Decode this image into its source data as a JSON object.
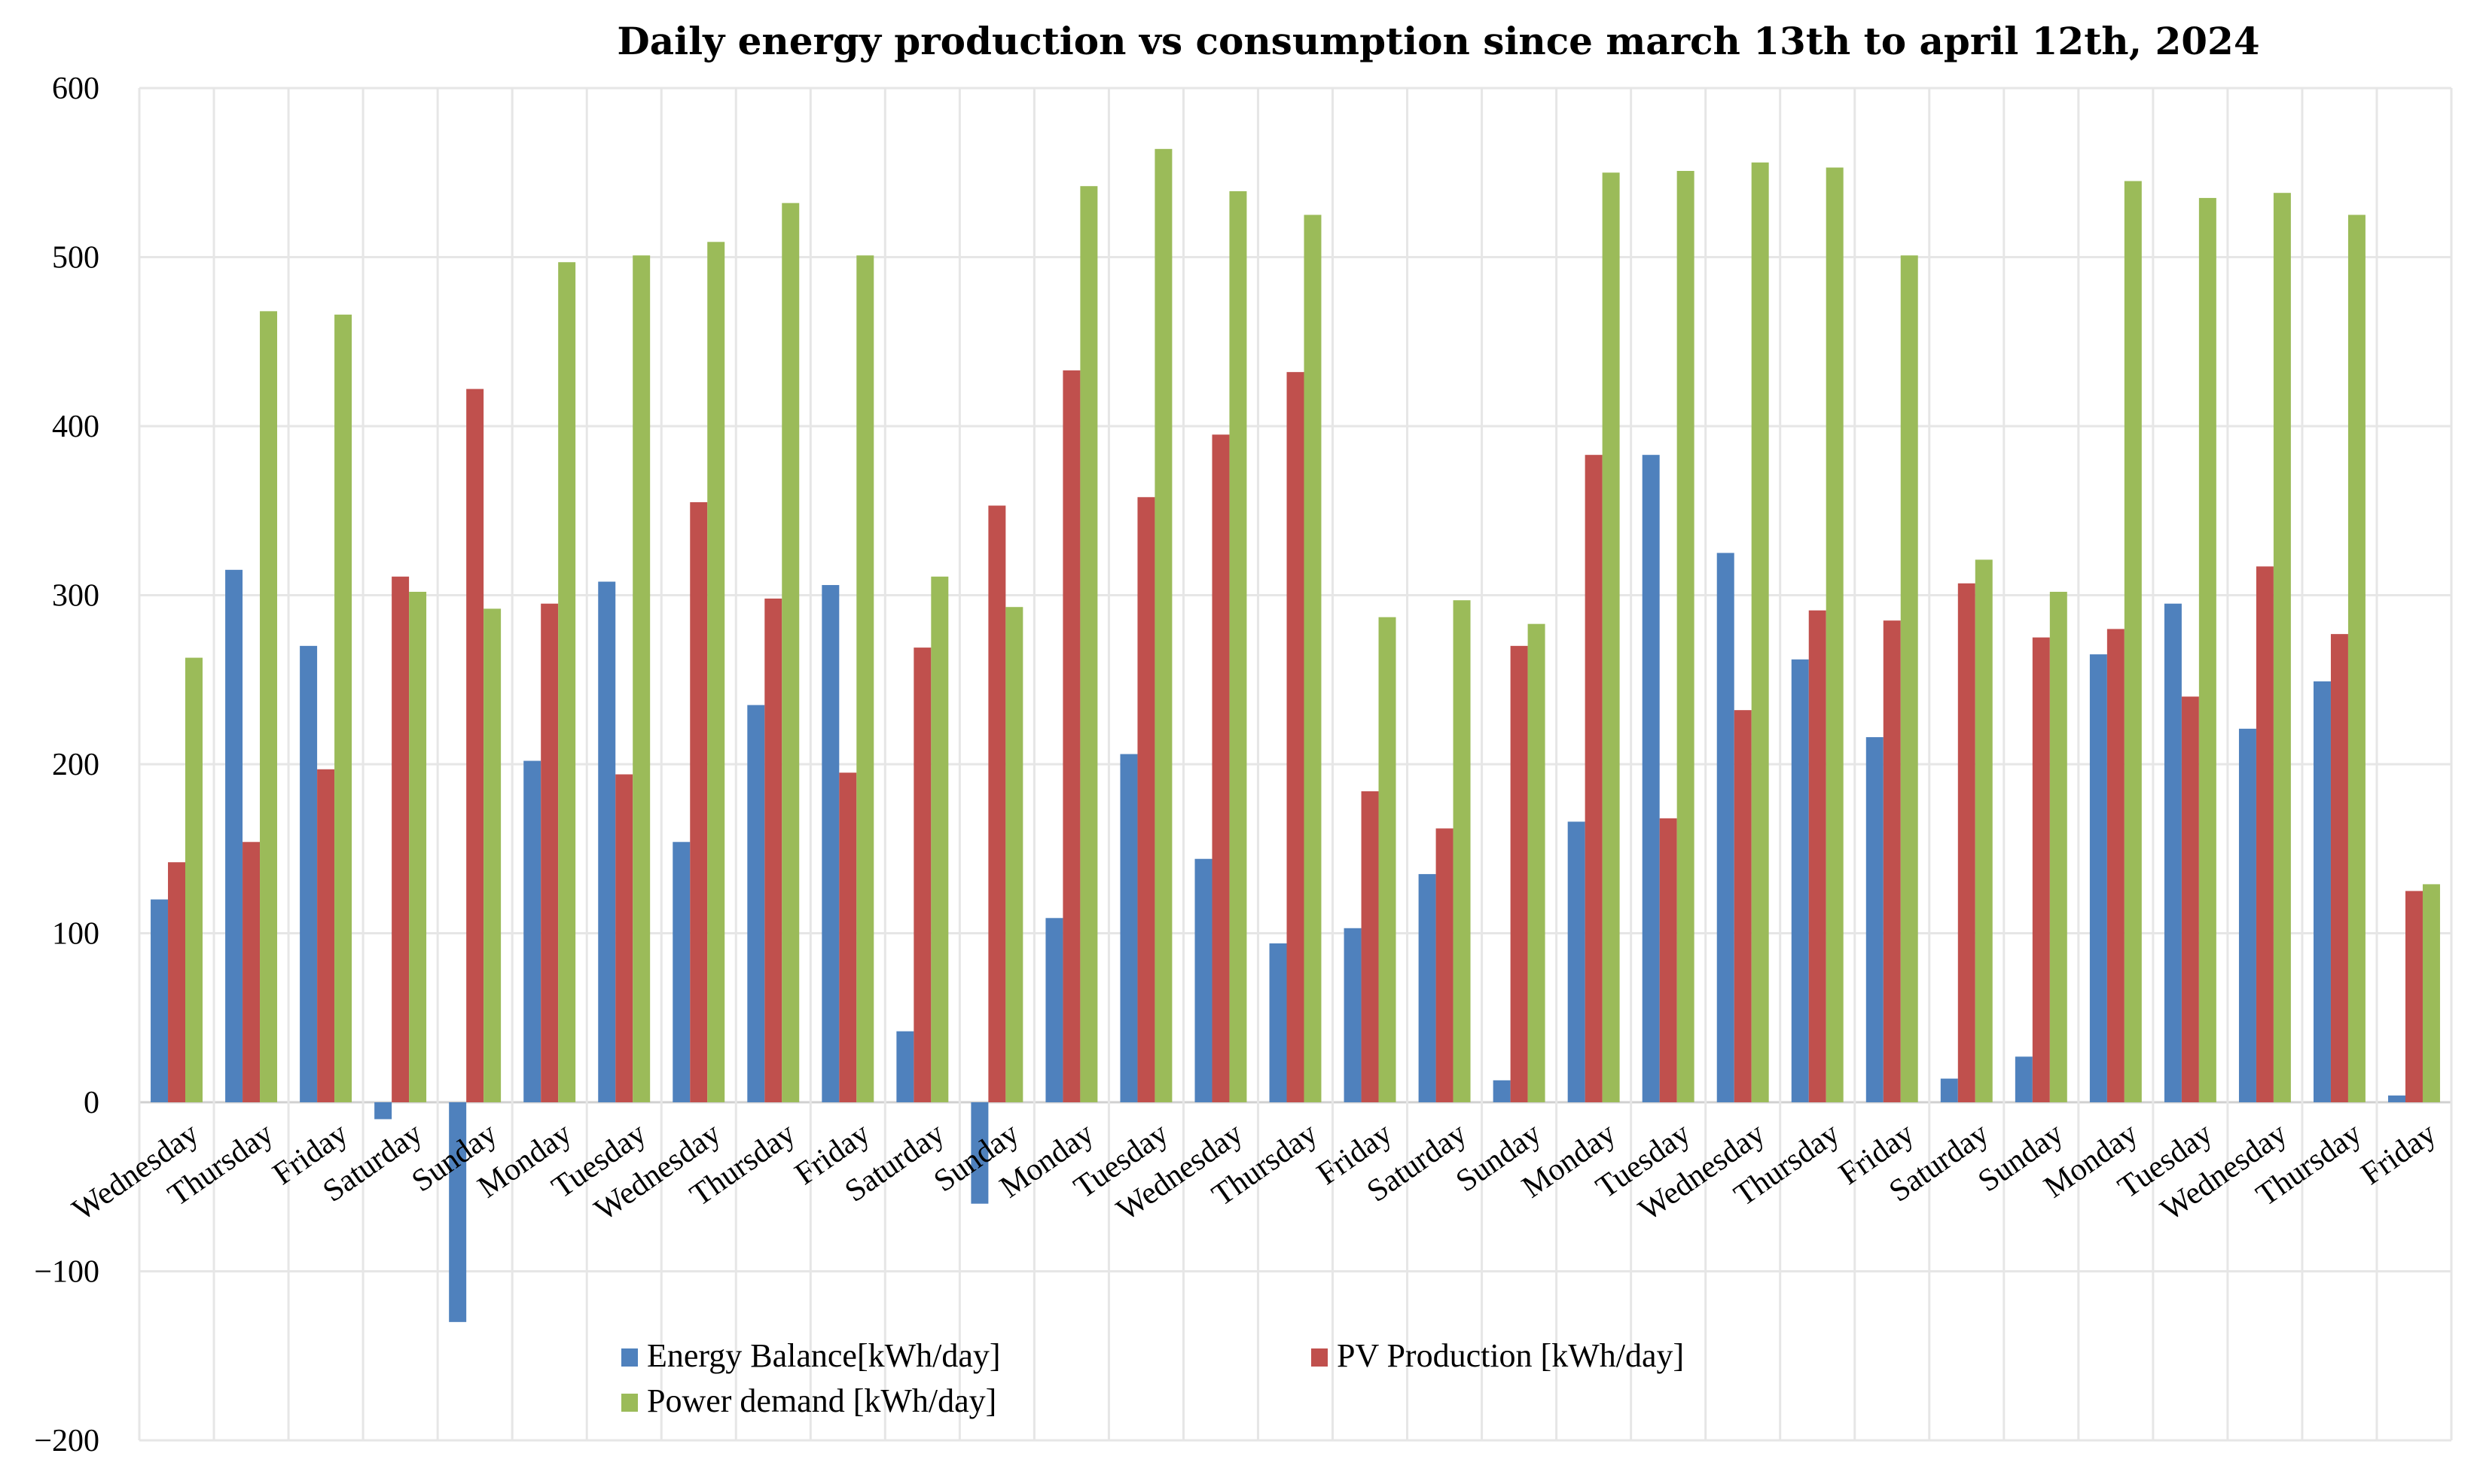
{
  "chart_data": {
    "type": "bar",
    "title": "Daily energy production vs consumption since march 13th to april 12th, 2024",
    "xlabel": "",
    "ylabel": "",
    "ylim": [
      -200,
      600
    ],
    "yticks": [
      -200,
      -100,
      0,
      100,
      200,
      300,
      400,
      500,
      600
    ],
    "grid": true,
    "legend_position": "bottom-center",
    "categories": [
      "Wednesday",
      "Thursday",
      "Friday",
      "Saturday",
      "Sunday",
      "Monday",
      "Tuesday",
      "Wednesday",
      "Thursday",
      "Friday",
      "Saturday",
      "Sunday",
      "Monday",
      "Tuesday",
      "Wednesday",
      "Thursday",
      "Friday",
      "Saturday",
      "Sunday",
      "Monday",
      "Tuesday",
      "Wednesday",
      "Thursday",
      "Friday",
      "Saturday",
      "Sunday",
      "Monday",
      "Tuesday",
      "Wednesday",
      "Thursday",
      "Friday"
    ],
    "series": [
      {
        "name": "Energy Balance[kWh/day]",
        "color": "#4f81bd",
        "values": [
          120,
          315,
          270,
          -10,
          -130,
          202,
          308,
          154,
          235,
          306,
          42,
          -60,
          109,
          206,
          144,
          94,
          103,
          135,
          13,
          166,
          383,
          325,
          262,
          216,
          14,
          27,
          265,
          295,
          221,
          249,
          4
        ]
      },
      {
        "name": "PV Production [kWh/day]",
        "color": "#c0504d",
        "values": [
          142,
          154,
          197,
          311,
          422,
          295,
          194,
          355,
          298,
          195,
          269,
          353,
          433,
          358,
          395,
          432,
          184,
          162,
          270,
          383,
          168,
          232,
          291,
          285,
          307,
          275,
          280,
          240,
          317,
          277,
          125
        ]
      },
      {
        "name": "Power demand [kWh/day]",
        "color": "#9bbb59",
        "values": [
          263,
          468,
          466,
          302,
          292,
          497,
          501,
          509,
          532,
          501,
          311,
          293,
          542,
          564,
          539,
          525,
          287,
          297,
          283,
          550,
          551,
          556,
          553,
          501,
          321,
          302,
          545,
          535,
          538,
          525,
          129
        ]
      }
    ]
  }
}
